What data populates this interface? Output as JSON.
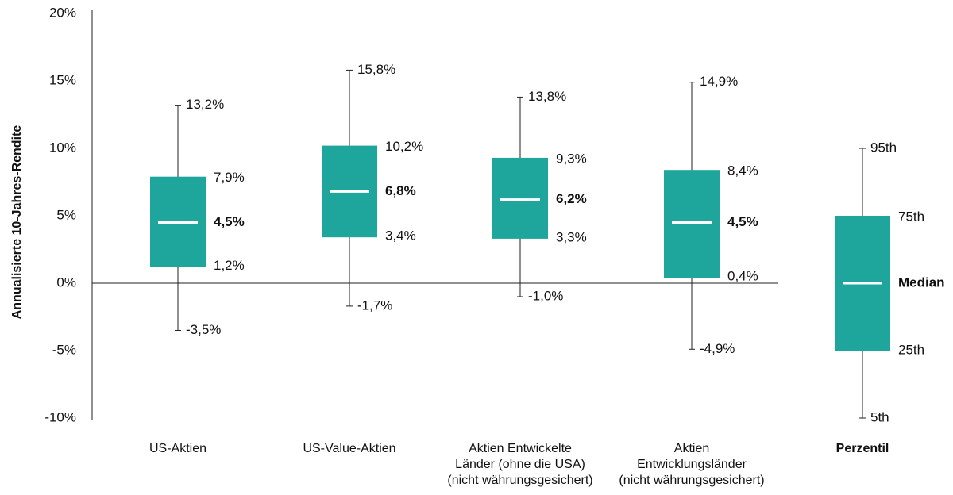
{
  "chart_data": {
    "type": "boxplot",
    "ylabel": "Annualisierte 10-Jahres-Rendite",
    "ylim": [
      -10,
      20
    ],
    "yticks": [
      {
        "value": 20,
        "label": "20%"
      },
      {
        "value": 15,
        "label": "15%"
      },
      {
        "value": 10,
        "label": "10%"
      },
      {
        "value": 5,
        "label": "5%"
      },
      {
        "value": 0,
        "label": "0%"
      },
      {
        "value": -5,
        "label": "-5%"
      },
      {
        "value": -10,
        "label": "-10%"
      }
    ],
    "colors": {
      "box": "#1ea59c",
      "median": "#ffffff",
      "line": "#222222"
    },
    "series": [
      {
        "name": "US-Aktien",
        "label_lines": [
          "US-Aktien"
        ],
        "p5": -3.5,
        "p25": 1.2,
        "median": 4.5,
        "p75": 7.9,
        "p95": 13.2,
        "labels": {
          "p95": "13,2%",
          "p75": "7,9%",
          "median": "4,5%",
          "p25": "1,2%",
          "p5": "-3,5%"
        }
      },
      {
        "name": "US-Value-Aktien",
        "label_lines": [
          "US-Value-Aktien"
        ],
        "p5": -1.7,
        "p25": 3.4,
        "median": 6.8,
        "p75": 10.2,
        "p95": 15.8,
        "labels": {
          "p95": "15,8%",
          "p75": "10,2%",
          "median": "6,8%",
          "p25": "3,4%",
          "p5": "-1,7%"
        }
      },
      {
        "name": "Aktien Entwickelte Länder (ohne die USA) (nicht währungsgesichert)",
        "label_lines": [
          "Aktien Entwickelte",
          "Länder (ohne die USA)",
          "(nicht währungsgesichert)"
        ],
        "p5": -1.0,
        "p25": 3.3,
        "median": 6.2,
        "p75": 9.3,
        "p95": 13.8,
        "labels": {
          "p95": "13,8%",
          "p75": "9,3%",
          "median": "6,2%",
          "p25": "3,3%",
          "p5": "-1,0%"
        }
      },
      {
        "name": "Aktien Entwicklungsländer (nicht währungsgesichert)",
        "label_lines": [
          "Aktien",
          "Entwicklungsländer",
          "(nicht währungsgesichert)"
        ],
        "p5": -4.9,
        "p25": 0.4,
        "median": 4.5,
        "p75": 8.4,
        "p95": 14.9,
        "labels": {
          "p95": "14,9%",
          "p75": "8,4%",
          "median": "4,5%",
          "p25": "0,4%",
          "p5": "-4,9%"
        }
      }
    ],
    "legend": {
      "title": "Perzentil",
      "p5": "5th",
      "p25": "25th",
      "median": "Median",
      "p75": "75th",
      "p95": "95th"
    }
  }
}
